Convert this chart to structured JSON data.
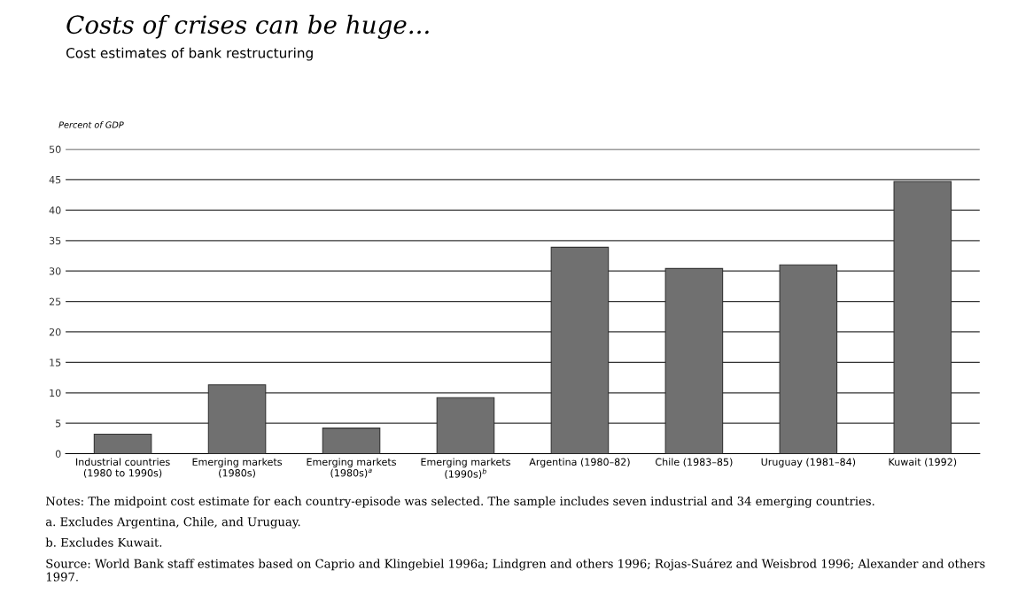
{
  "chart_data": {
    "type": "bar",
    "title": "Costs of crises can be huge...",
    "subtitle": "Cost estimates of bank restructuring",
    "ylabel": "Percent of GDP",
    "categories": [
      "Industrial countries\n(1980 to 1990s)",
      "Emerging markets\n(1980s)",
      "Emerging markets\n(1980s)$^{a}$",
      "Emerging markets\n(1990s)$^{b}$",
      "Argentina (1980–82)",
      "Chile (1983–85)",
      "Uruguay (1981–84)",
      "Kuwait (1992)"
    ],
    "values": [
      3.2,
      11.3,
      4.2,
      9.2,
      33.9,
      30.4,
      31.0,
      44.7
    ],
    "color": "#707070",
    "ylim": [
      0,
      50
    ],
    "yticks": [
      0,
      5,
      10,
      15,
      20,
      25,
      30,
      35,
      40,
      45,
      50
    ],
    "grid": "y",
    "annotations": [
      "Notes: The midpoint cost estimate for each country-episode was selected. The sample includes seven industrial and 34 emerging countries.",
      "a. Excludes Argentina, Chile, and Uruguay.",
      "b. Excludes Kuwait.",
      "Source: World Bank staff estimates based on Caprio and Klingebiel 1996a; Lindgren and others 1996; Rojas-Suárez and Weisbrod 1996; Alexander and others 1997."
    ]
  }
}
